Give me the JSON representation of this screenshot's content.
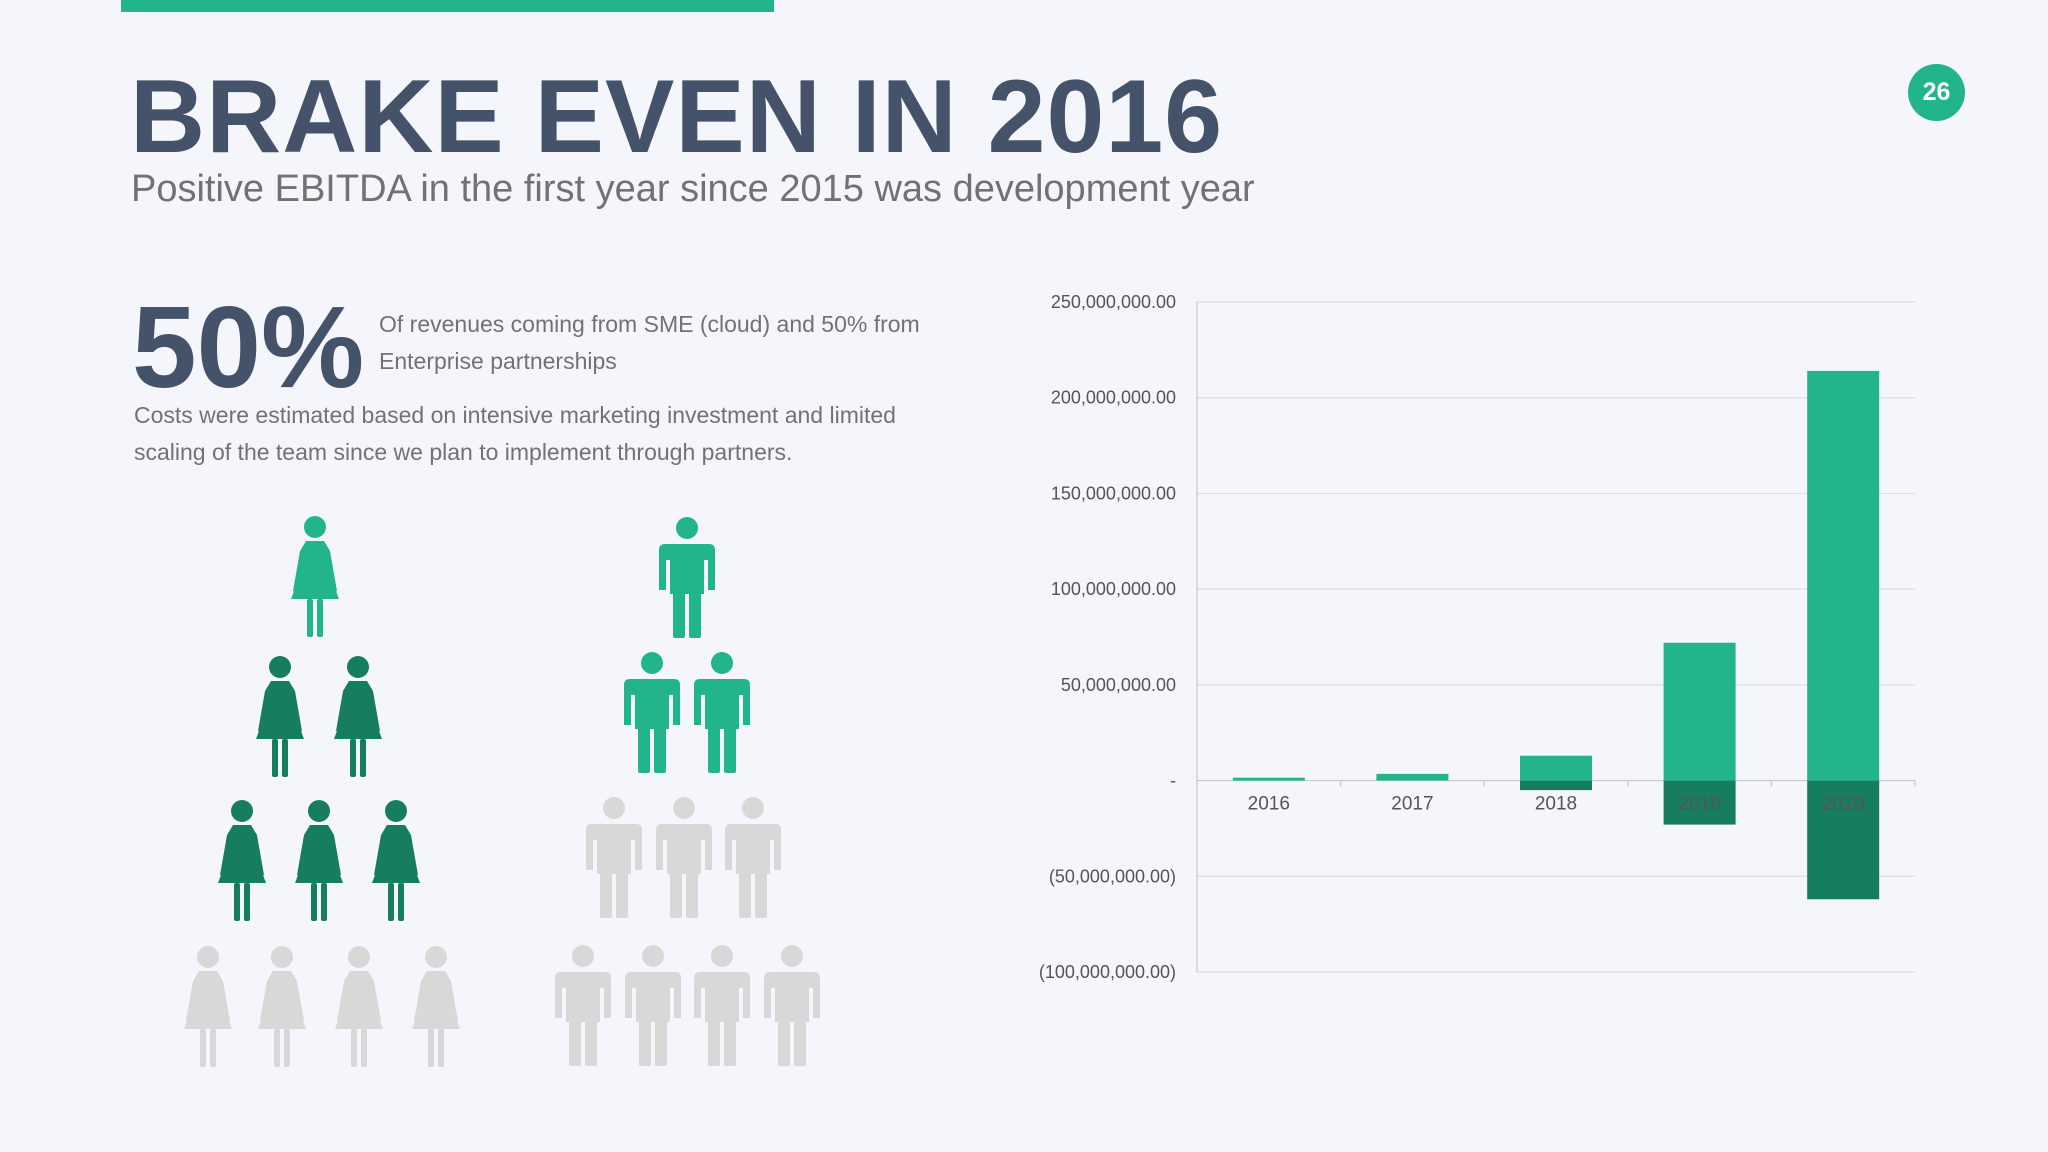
{
  "slide": {
    "page_number": "26",
    "title": "BRAKE EVEN IN 2016",
    "subtitle": "Positive EBITDA in the first year since 2015 was development year"
  },
  "stats": {
    "percent": "50%",
    "percent_caption": "Of revenues coming from SME (cloud) and 50% from Enterprise partnerships",
    "costs_note": "Costs were estimated based on intensive marketing investment and limited scaling of the team since we plan to implement through partners."
  },
  "infographic": {
    "women_pyramid_icon": "woman-icon",
    "men_pyramid_icon": "man-icon",
    "colors": {
      "light_green": "#22b58c",
      "dark_green": "#177d5f",
      "grey": "#d8d8d8"
    }
  },
  "chart_data": {
    "type": "bar",
    "categories": [
      "2016",
      "2017",
      "2018",
      "2019",
      "2020"
    ],
    "series": [
      {
        "values": [
          1500000,
          3500000,
          13000000,
          72000000,
          214000000
        ],
        "color": "#22b58c"
      },
      {
        "values": [
          0,
          0,
          -5000000,
          -23000000,
          -62000000
        ],
        "color": "#177d5f"
      }
    ],
    "ylim": [
      -100000000,
      250000000
    ],
    "y_ticks": [
      {
        "value": 250000000,
        "label": "250,000,000.00"
      },
      {
        "value": 200000000,
        "label": "200,000,000.00"
      },
      {
        "value": 150000000,
        "label": "150,000,000.00"
      },
      {
        "value": 100000000,
        "label": "100,000,000.00"
      },
      {
        "value": 50000000,
        "label": "50,000,000.00"
      },
      {
        "value": 0,
        "label": "-"
      },
      {
        "value": -50000000,
        "label": "(50,000,000.00)"
      },
      {
        "value": -100000000,
        "label": "(100,000,000.00)"
      }
    ],
    "grid": true,
    "title": "",
    "xlabel": "",
    "ylabel": ""
  }
}
